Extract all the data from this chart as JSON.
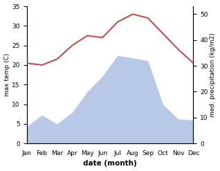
{
  "months": [
    "Jan",
    "Feb",
    "Mar",
    "Apr",
    "May",
    "Jun",
    "Jul",
    "Aug",
    "Sep",
    "Oct",
    "Nov",
    "Dec"
  ],
  "temperature": [
    20.5,
    20.0,
    21.5,
    25.0,
    27.5,
    27.0,
    31.0,
    33.0,
    32.0,
    28.0,
    24.0,
    20.5
  ],
  "precipitation": [
    6.5,
    11.0,
    7.5,
    12.0,
    20.0,
    26.0,
    34.0,
    33.0,
    32.0,
    15.0,
    9.5,
    9.0
  ],
  "temp_color": "#c0504d",
  "precip_fill_color": "#b8c9e8",
  "temp_ylim": [
    0,
    35
  ],
  "precip_ylim": [
    0,
    53
  ],
  "temp_yticks": [
    0,
    5,
    10,
    15,
    20,
    25,
    30,
    35
  ],
  "precip_yticks": [
    0,
    10,
    20,
    30,
    40,
    50
  ],
  "ylabel_left": "max temp (C)",
  "ylabel_right": "med. precipitation (kg/m2)",
  "xlabel": "date (month)",
  "background_color": "#ffffff",
  "temp_linewidth": 1.5,
  "xlabel_fontsize": 7.5,
  "ylabel_fontsize": 6.5,
  "tick_fontsize": 6.5
}
